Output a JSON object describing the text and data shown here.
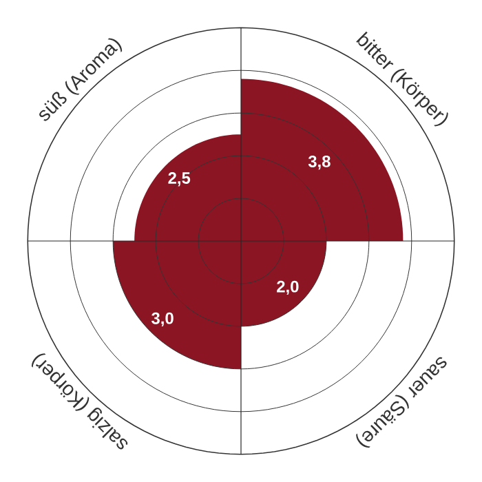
{
  "chart_data": {
    "type": "other",
    "categories": [
      "süß (Aroma)",
      "bitter (Körper)",
      "sauer (Säure)",
      "salzig (Körper)"
    ],
    "values": [
      2.5,
      3.8,
      2.0,
      3.0
    ],
    "value_labels": [
      "2,5",
      "3,8",
      "2,0",
      "3,0"
    ],
    "color": "#8c1524"
  }
}
